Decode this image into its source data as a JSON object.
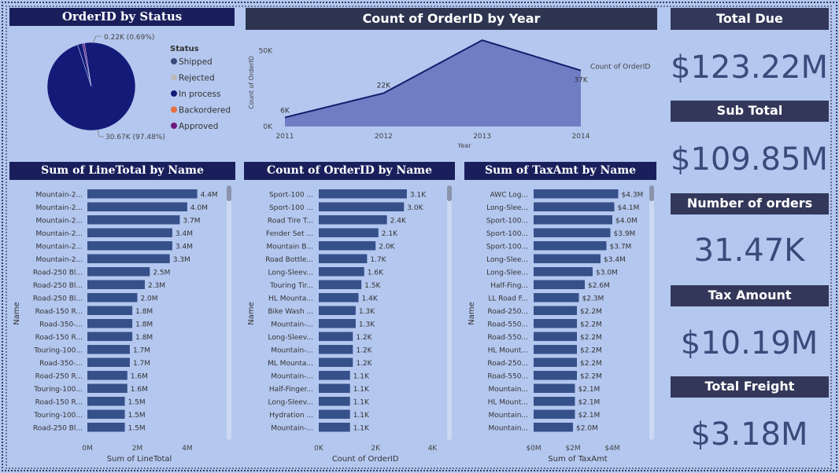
{
  "pie": {
    "title": "OrderID by Status",
    "legend_title": "Status",
    "legend": [
      {
        "label": "Shipped",
        "color": "#3b4a7a"
      },
      {
        "label": "Rejected",
        "color": "#b9b9b9"
      },
      {
        "label": "In process",
        "color": "#141a78"
      },
      {
        "label": "Backordered",
        "color": "#e8703d"
      },
      {
        "label": "Approved",
        "color": "#6b1b7b"
      }
    ],
    "label_small": "0.22K (0.69%)",
    "label_big": "30.67K (97.48%)"
  },
  "year_chart": {
    "title": "Count of OrderID by Year",
    "ylabel": "Count of OrderID",
    "xlabel": "Year",
    "series_label": "Count of OrderID",
    "yticks": [
      "0K",
      "50K"
    ],
    "chart_data": {
      "type": "area",
      "x": [
        "2011",
        "2012",
        "2013",
        "2014"
      ],
      "values": [
        6,
        22,
        57,
        37
      ],
      "data_labels": [
        "6K",
        "22K",
        "57K",
        "37K"
      ],
      "ylim": [
        0,
        55
      ]
    }
  },
  "line_total": {
    "title": "Sum of LineTotal by Name",
    "ylabel": "Name",
    "xlabel": "Sum of LineTotal",
    "xticks": [
      "0M",
      "2M",
      "4M"
    ],
    "chart_data": {
      "type": "bar",
      "categories": [
        "Mountain-2...",
        "Mountain-2...",
        "Mountain-2...",
        "Mountain-2...",
        "Mountain-2...",
        "Mountain-2...",
        "Road-250 Bl...",
        "Road-250 Bl...",
        "Road-250 Bl...",
        "Road-150 R...",
        "Road-350-...",
        "Road-150 R...",
        "Touring-100...",
        "Road-350-...",
        "Road-250 R...",
        "Touring-100...",
        "Road-150 R...",
        "Touring-100...",
        "Road-250 Bl..."
      ],
      "values": [
        4.4,
        4.0,
        3.7,
        3.4,
        3.4,
        3.3,
        2.5,
        2.3,
        2.0,
        1.8,
        1.8,
        1.8,
        1.7,
        1.7,
        1.6,
        1.6,
        1.5,
        1.5,
        1.5
      ],
      "data_labels": [
        "4.4M",
        "4.0M",
        "3.7M",
        "3.4M",
        "3.4M",
        "3.3M",
        "2.5M",
        "2.3M",
        "2.0M",
        "1.8M",
        "1.8M",
        "1.8M",
        "1.7M",
        "1.7M",
        "1.6M",
        "1.6M",
        "1.5M",
        "1.5M",
        "1.5M"
      ],
      "xlim": [
        0,
        5.2
      ]
    }
  },
  "order_count": {
    "title": "Count of OrderID by Name",
    "ylabel": "Name",
    "xlabel": "Count of OrderID",
    "xticks": [
      "0K",
      "2K",
      "4K"
    ],
    "chart_data": {
      "type": "bar",
      "categories": [
        "Sport-100 ...",
        "Sport-100 ...",
        "Road Tire T...",
        "Fender Set ...",
        "Mountain B...",
        "Road Bottle...",
        "Long-Sleev...",
        "Touring Tir...",
        "HL Mounta...",
        "Bike Wash ...",
        "Mountain-...",
        "Long-Sleev...",
        "Mountain-...",
        "ML Mounta...",
        "Mountain-...",
        "Half-Finger...",
        "Long-Sleev...",
        "Hydration ...",
        "Mountain-..."
      ],
      "values": [
        3.1,
        3.0,
        2.4,
        2.1,
        2.0,
        1.7,
        1.6,
        1.5,
        1.4,
        1.3,
        1.3,
        1.2,
        1.2,
        1.2,
        1.1,
        1.1,
        1.1,
        1.1,
        1.1
      ],
      "data_labels": [
        "3.1K",
        "3.0K",
        "2.4K",
        "2.1K",
        "2.0K",
        "1.7K",
        "1.6K",
        "1.5K",
        "1.4K",
        "1.3K",
        "1.3K",
        "1.2K",
        "1.2K",
        "1.2K",
        "1.1K",
        "1.1K",
        "1.1K",
        "1.1K",
        "1.1K"
      ],
      "xlim": [
        0,
        4.1
      ]
    }
  },
  "tax_amt": {
    "title": "Sum of TaxAmt by Name",
    "ylabel": "Name",
    "xlabel": "Sum of TaxAmt",
    "xticks": [
      "$0M",
      "$2M",
      "$4M"
    ],
    "chart_data": {
      "type": "bar",
      "categories": [
        "AWC Log...",
        "Long-Slee...",
        "Sport-100...",
        "Sport-100...",
        "Sport-100...",
        "Long-Slee...",
        "Long-Slee...",
        "Half-Fing...",
        "LL Road F...",
        "Road-250...",
        "Road-550...",
        "Road-550...",
        "HL Mount...",
        "Road-250...",
        "Road-550...",
        "Mountain...",
        "HL Mount...",
        "Mountain...",
        "Mountain..."
      ],
      "values": [
        4.3,
        4.1,
        4.0,
        3.9,
        3.7,
        3.4,
        3.0,
        2.6,
        2.3,
        2.2,
        2.2,
        2.2,
        2.2,
        2.2,
        2.2,
        2.1,
        2.1,
        2.1,
        2.0
      ],
      "data_labels": [
        "$4.3M",
        "$4.1M",
        "$4.0M",
        "$3.9M",
        "$3.7M",
        "$3.4M",
        "$3.0M",
        "$2.6M",
        "$2.3M",
        "$2.2M",
        "$2.2M",
        "$2.2M",
        "$2.2M",
        "$2.2M",
        "$2.2M",
        "$2.1M",
        "$2.1M",
        "$2.1M",
        "$2.0M"
      ],
      "xlim": [
        0,
        5.6
      ]
    }
  },
  "kpis": [
    {
      "title": "Total Due",
      "value": "$123.22M"
    },
    {
      "title": "Sub Total",
      "value": "$109.85M"
    },
    {
      "title": "Number of orders",
      "value": "31.47K"
    },
    {
      "title": "Tax Amount",
      "value": "$10.19M"
    },
    {
      "title": "Total Freight",
      "value": "$3.18M"
    }
  ],
  "colors": {
    "bar": "#36508a",
    "area": "#717dc3",
    "line": "#131a6b",
    "title_bg": "#1a1f5c",
    "kpi_title_bg": "#33385a"
  }
}
